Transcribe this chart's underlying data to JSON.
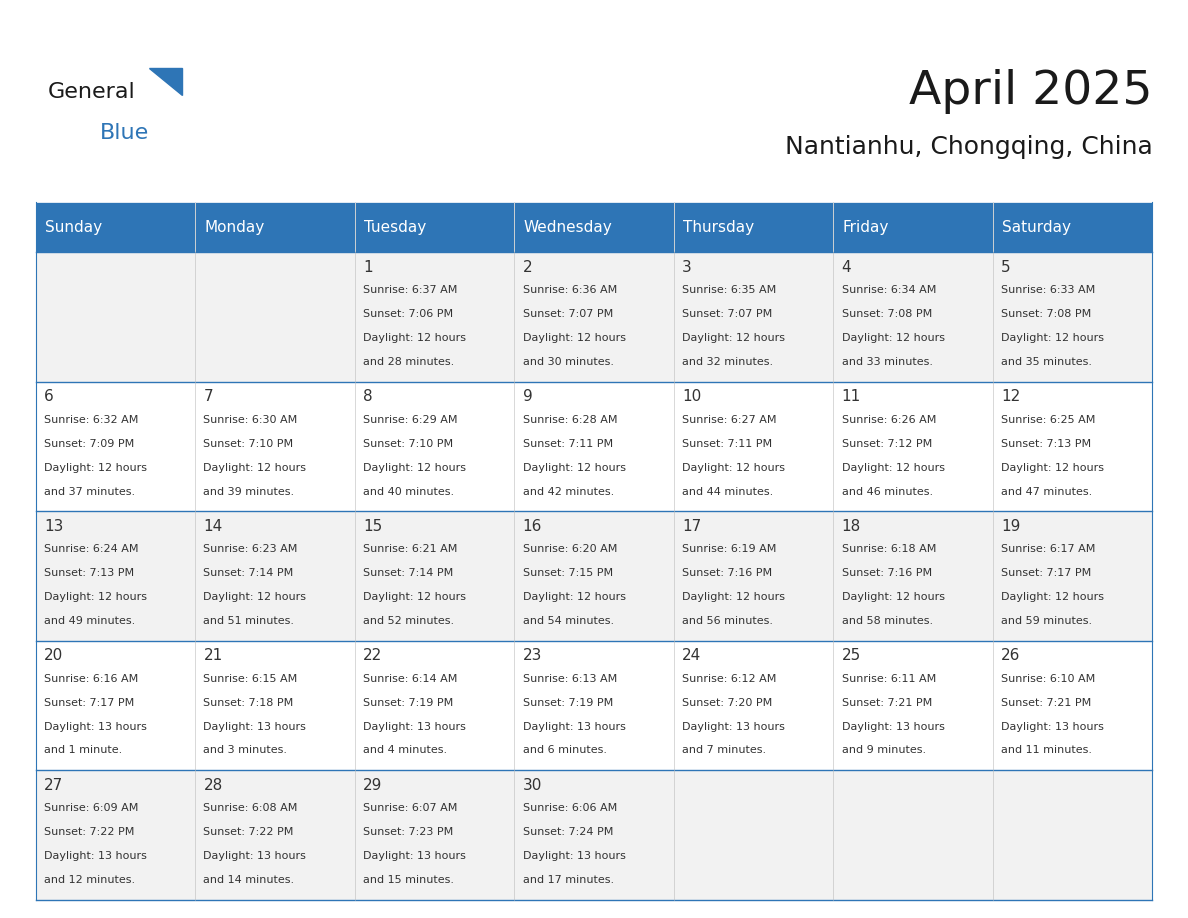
{
  "title": "April 2025",
  "subtitle": "Nantianhu, Chongqing, China",
  "header_color": "#2E75B6",
  "header_text_color": "#FFFFFF",
  "day_names": [
    "Sunday",
    "Monday",
    "Tuesday",
    "Wednesday",
    "Thursday",
    "Friday",
    "Saturday"
  ],
  "alt_row_color": "#F2F2F2",
  "white_color": "#FFFFFF",
  "border_color": "#2E75B6",
  "text_color": "#333333",
  "num_color": "#333333",
  "calendar": [
    [
      {
        "day": 0,
        "sunrise": "",
        "sunset": "",
        "daylight": ""
      },
      {
        "day": 0,
        "sunrise": "",
        "sunset": "",
        "daylight": ""
      },
      {
        "day": 1,
        "sunrise": "6:37 AM",
        "sunset": "7:06 PM",
        "daylight": "12 hours\nand 28 minutes."
      },
      {
        "day": 2,
        "sunrise": "6:36 AM",
        "sunset": "7:07 PM",
        "daylight": "12 hours\nand 30 minutes."
      },
      {
        "day": 3,
        "sunrise": "6:35 AM",
        "sunset": "7:07 PM",
        "daylight": "12 hours\nand 32 minutes."
      },
      {
        "day": 4,
        "sunrise": "6:34 AM",
        "sunset": "7:08 PM",
        "daylight": "12 hours\nand 33 minutes."
      },
      {
        "day": 5,
        "sunrise": "6:33 AM",
        "sunset": "7:08 PM",
        "daylight": "12 hours\nand 35 minutes."
      }
    ],
    [
      {
        "day": 6,
        "sunrise": "6:32 AM",
        "sunset": "7:09 PM",
        "daylight": "12 hours\nand 37 minutes."
      },
      {
        "day": 7,
        "sunrise": "6:30 AM",
        "sunset": "7:10 PM",
        "daylight": "12 hours\nand 39 minutes."
      },
      {
        "day": 8,
        "sunrise": "6:29 AM",
        "sunset": "7:10 PM",
        "daylight": "12 hours\nand 40 minutes."
      },
      {
        "day": 9,
        "sunrise": "6:28 AM",
        "sunset": "7:11 PM",
        "daylight": "12 hours\nand 42 minutes."
      },
      {
        "day": 10,
        "sunrise": "6:27 AM",
        "sunset": "7:11 PM",
        "daylight": "12 hours\nand 44 minutes."
      },
      {
        "day": 11,
        "sunrise": "6:26 AM",
        "sunset": "7:12 PM",
        "daylight": "12 hours\nand 46 minutes."
      },
      {
        "day": 12,
        "sunrise": "6:25 AM",
        "sunset": "7:13 PM",
        "daylight": "12 hours\nand 47 minutes."
      }
    ],
    [
      {
        "day": 13,
        "sunrise": "6:24 AM",
        "sunset": "7:13 PM",
        "daylight": "12 hours\nand 49 minutes."
      },
      {
        "day": 14,
        "sunrise": "6:23 AM",
        "sunset": "7:14 PM",
        "daylight": "12 hours\nand 51 minutes."
      },
      {
        "day": 15,
        "sunrise": "6:21 AM",
        "sunset": "7:14 PM",
        "daylight": "12 hours\nand 52 minutes."
      },
      {
        "day": 16,
        "sunrise": "6:20 AM",
        "sunset": "7:15 PM",
        "daylight": "12 hours\nand 54 minutes."
      },
      {
        "day": 17,
        "sunrise": "6:19 AM",
        "sunset": "7:16 PM",
        "daylight": "12 hours\nand 56 minutes."
      },
      {
        "day": 18,
        "sunrise": "6:18 AM",
        "sunset": "7:16 PM",
        "daylight": "12 hours\nand 58 minutes."
      },
      {
        "day": 19,
        "sunrise": "6:17 AM",
        "sunset": "7:17 PM",
        "daylight": "12 hours\nand 59 minutes."
      }
    ],
    [
      {
        "day": 20,
        "sunrise": "6:16 AM",
        "sunset": "7:17 PM",
        "daylight": "13 hours\nand 1 minute."
      },
      {
        "day": 21,
        "sunrise": "6:15 AM",
        "sunset": "7:18 PM",
        "daylight": "13 hours\nand 3 minutes."
      },
      {
        "day": 22,
        "sunrise": "6:14 AM",
        "sunset": "7:19 PM",
        "daylight": "13 hours\nand 4 minutes."
      },
      {
        "day": 23,
        "sunrise": "6:13 AM",
        "sunset": "7:19 PM",
        "daylight": "13 hours\nand 6 minutes."
      },
      {
        "day": 24,
        "sunrise": "6:12 AM",
        "sunset": "7:20 PM",
        "daylight": "13 hours\nand 7 minutes."
      },
      {
        "day": 25,
        "sunrise": "6:11 AM",
        "sunset": "7:21 PM",
        "daylight": "13 hours\nand 9 minutes."
      },
      {
        "day": 26,
        "sunrise": "6:10 AM",
        "sunset": "7:21 PM",
        "daylight": "13 hours\nand 11 minutes."
      }
    ],
    [
      {
        "day": 27,
        "sunrise": "6:09 AM",
        "sunset": "7:22 PM",
        "daylight": "13 hours\nand 12 minutes."
      },
      {
        "day": 28,
        "sunrise": "6:08 AM",
        "sunset": "7:22 PM",
        "daylight": "13 hours\nand 14 minutes."
      },
      {
        "day": 29,
        "sunrise": "6:07 AM",
        "sunset": "7:23 PM",
        "daylight": "13 hours\nand 15 minutes."
      },
      {
        "day": 30,
        "sunrise": "6:06 AM",
        "sunset": "7:24 PM",
        "daylight": "13 hours\nand 17 minutes."
      },
      {
        "day": 0,
        "sunrise": "",
        "sunset": "",
        "daylight": ""
      },
      {
        "day": 0,
        "sunrise": "",
        "sunset": "",
        "daylight": ""
      },
      {
        "day": 0,
        "sunrise": "",
        "sunset": "",
        "daylight": ""
      }
    ]
  ],
  "logo_text1": "General",
  "logo_text2": "Blue",
  "logo_color1": "#1a1a1a",
  "logo_color2": "#2E75B6",
  "logo_triangle_color": "#2E75B6"
}
